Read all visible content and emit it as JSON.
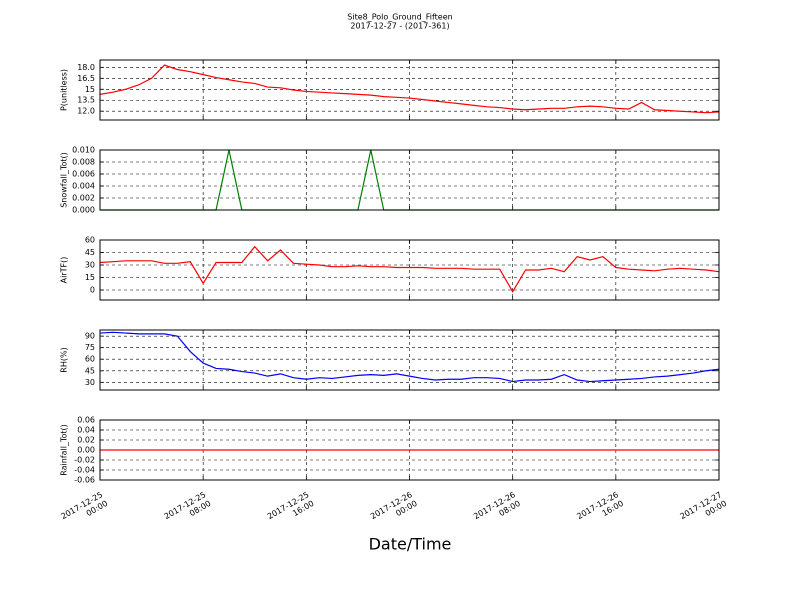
{
  "title": "Site8_Polo_Ground_Fifteen",
  "subtitle": "2017-12-27 - (2017-361)",
  "x_label": "Date/Time",
  "chart_data": [
    {
      "type": "line",
      "y_label": "P(unitless)",
      "ylim": [
        10.8,
        19.0
      ],
      "yticks": [
        {
          "value": 12,
          "label": "12.0"
        },
        13.5,
        15,
        16.5,
        {
          "value": 18,
          "label": "18.0"
        }
      ],
      "grid": true,
      "x": [
        "2017-12-25 00:00",
        "2017-12-25 01:00",
        "2017-12-25 02:00",
        "2017-12-25 03:00",
        "2017-12-25 04:00",
        "2017-12-25 05:00",
        "2017-12-25 06:00",
        "2017-12-25 07:00",
        "2017-12-25 08:00",
        "2017-12-25 09:00",
        "2017-12-25 10:00",
        "2017-12-25 11:00",
        "2017-12-25 12:00",
        "2017-12-25 13:00",
        "2017-12-25 14:00",
        "2017-12-25 15:00",
        "2017-12-25 16:00",
        "2017-12-25 17:00",
        "2017-12-25 18:00",
        "2017-12-25 19:00",
        "2017-12-25 20:00",
        "2017-12-25 21:00",
        "2017-12-25 22:00",
        "2017-12-25 23:00",
        "2017-12-26 00:00",
        "2017-12-26 01:00",
        "2017-12-26 02:00",
        "2017-12-26 03:00",
        "2017-12-26 04:00",
        "2017-12-26 05:00",
        "2017-12-26 06:00",
        "2017-12-26 07:00",
        "2017-12-26 08:00",
        "2017-12-26 09:00",
        "2017-12-26 10:00",
        "2017-12-26 11:00",
        "2017-12-26 12:00",
        "2017-12-26 13:00",
        "2017-12-26 14:00",
        "2017-12-26 15:00",
        "2017-12-26 16:00",
        "2017-12-26 17:00",
        "2017-12-26 18:00",
        "2017-12-26 19:00",
        "2017-12-26 20:00",
        "2017-12-26 21:00",
        "2017-12-26 22:00",
        "2017-12-26 23:00",
        "2017-12-27 00:00"
      ],
      "series": [
        {
          "color": "#ff0000",
          "values": [
            14.3,
            14.6,
            15.0,
            15.6,
            16.5,
            18.3,
            17.7,
            17.4,
            17.0,
            16.6,
            16.3,
            16.0,
            15.8,
            15.3,
            15.2,
            14.9,
            14.7,
            14.6,
            14.5,
            14.4,
            14.3,
            14.2,
            14.0,
            13.9,
            13.8,
            13.6,
            13.4,
            13.2,
            13.0,
            12.8,
            12.6,
            12.5,
            12.3,
            12.2,
            12.3,
            12.4,
            12.4,
            12.6,
            12.7,
            12.6,
            12.4,
            12.3,
            13.2,
            12.2,
            12.1,
            12.0,
            11.9,
            11.8,
            11.9
          ]
        }
      ]
    },
    {
      "type": "line",
      "y_label": "Snowfall_Tot()",
      "ylim": [
        0,
        0.01
      ],
      "yticks": [
        {
          "value": 0,
          "label": "0.000"
        },
        {
          "value": 0.002,
          "label": "0.002"
        },
        {
          "value": 0.004,
          "label": "0.004"
        },
        {
          "value": 0.006,
          "label": "0.006"
        },
        {
          "value": 0.008,
          "label": "0.008"
        },
        {
          "value": 0.01,
          "label": "0.010"
        }
      ],
      "grid": true,
      "x": [
        "2017-12-25 00:00",
        "2017-12-25 01:00",
        "2017-12-25 02:00",
        "2017-12-25 03:00",
        "2017-12-25 04:00",
        "2017-12-25 05:00",
        "2017-12-25 06:00",
        "2017-12-25 07:00",
        "2017-12-25 08:00",
        "2017-12-25 09:00",
        "2017-12-25 10:00",
        "2017-12-25 11:00",
        "2017-12-25 12:00",
        "2017-12-25 13:00",
        "2017-12-25 14:00",
        "2017-12-25 15:00",
        "2017-12-25 16:00",
        "2017-12-25 17:00",
        "2017-12-25 18:00",
        "2017-12-25 19:00",
        "2017-12-25 20:00",
        "2017-12-25 21:00",
        "2017-12-25 22:00",
        "2017-12-25 23:00",
        "2017-12-26 00:00",
        "2017-12-26 01:00",
        "2017-12-26 02:00",
        "2017-12-26 03:00",
        "2017-12-26 04:00",
        "2017-12-26 05:00",
        "2017-12-26 06:00",
        "2017-12-26 07:00",
        "2017-12-26 08:00",
        "2017-12-26 09:00",
        "2017-12-26 10:00",
        "2017-12-26 11:00",
        "2017-12-26 12:00",
        "2017-12-26 13:00",
        "2017-12-26 14:00",
        "2017-12-26 15:00",
        "2017-12-26 16:00",
        "2017-12-26 17:00",
        "2017-12-26 18:00",
        "2017-12-26 19:00",
        "2017-12-26 20:00",
        "2017-12-26 21:00",
        "2017-12-26 22:00",
        "2017-12-26 23:00",
        "2017-12-27 00:00"
      ],
      "series": [
        {
          "color": "#008000",
          "values": [
            0,
            0,
            0,
            0,
            0,
            0,
            0,
            0,
            0,
            0,
            0.01,
            0,
            0,
            0,
            0,
            0,
            0,
            0,
            0,
            0,
            0,
            0.01,
            0,
            0,
            0,
            0,
            0,
            0,
            0,
            0,
            0,
            0,
            0,
            0,
            0,
            0,
            0,
            0,
            0,
            0,
            0,
            0,
            0,
            0,
            0,
            0,
            0,
            0,
            0
          ]
        }
      ]
    },
    {
      "type": "line",
      "y_label": "AirTF()",
      "ylim": [
        -12,
        60
      ],
      "yticks": [
        0,
        15,
        30,
        45,
        60
      ],
      "grid": true,
      "x": [
        "2017-12-25 00:00",
        "2017-12-25 01:00",
        "2017-12-25 02:00",
        "2017-12-25 03:00",
        "2017-12-25 04:00",
        "2017-12-25 05:00",
        "2017-12-25 06:00",
        "2017-12-25 07:00",
        "2017-12-25 08:00",
        "2017-12-25 09:00",
        "2017-12-25 10:00",
        "2017-12-25 11:00",
        "2017-12-25 12:00",
        "2017-12-25 13:00",
        "2017-12-25 14:00",
        "2017-12-25 15:00",
        "2017-12-25 16:00",
        "2017-12-25 17:00",
        "2017-12-25 18:00",
        "2017-12-25 19:00",
        "2017-12-25 20:00",
        "2017-12-25 21:00",
        "2017-12-25 22:00",
        "2017-12-25 23:00",
        "2017-12-26 00:00",
        "2017-12-26 01:00",
        "2017-12-26 02:00",
        "2017-12-26 03:00",
        "2017-12-26 04:00",
        "2017-12-26 05:00",
        "2017-12-26 06:00",
        "2017-12-26 07:00",
        "2017-12-26 08:00",
        "2017-12-26 09:00",
        "2017-12-26 10:00",
        "2017-12-26 11:00",
        "2017-12-26 12:00",
        "2017-12-26 13:00",
        "2017-12-26 14:00",
        "2017-12-26 15:00",
        "2017-12-26 16:00",
        "2017-12-26 17:00",
        "2017-12-26 18:00",
        "2017-12-26 19:00",
        "2017-12-26 20:00",
        "2017-12-26 21:00",
        "2017-12-26 22:00",
        "2017-12-26 23:00",
        "2017-12-27 00:00"
      ],
      "series": [
        {
          "color": "#ff0000",
          "values": [
            33,
            34,
            35,
            35,
            35,
            32,
            32,
            34,
            8,
            33,
            33,
            33,
            52,
            35,
            48,
            32,
            31,
            30,
            28,
            28,
            29,
            28,
            28,
            27,
            27,
            27,
            26,
            26,
            26,
            25,
            25,
            25,
            -2,
            24,
            24,
            26,
            22,
            40,
            36,
            40,
            27,
            25,
            24,
            23,
            25,
            26,
            25,
            24,
            22
          ]
        }
      ]
    },
    {
      "type": "line",
      "y_label": "RH(%)",
      "ylim": [
        20,
        98
      ],
      "yticks": [
        30,
        45,
        60,
        75,
        90
      ],
      "grid": true,
      "x": [
        "2017-12-25 00:00",
        "2017-12-25 01:00",
        "2017-12-25 02:00",
        "2017-12-25 03:00",
        "2017-12-25 04:00",
        "2017-12-25 05:00",
        "2017-12-25 06:00",
        "2017-12-25 07:00",
        "2017-12-25 08:00",
        "2017-12-25 09:00",
        "2017-12-25 10:00",
        "2017-12-25 11:00",
        "2017-12-25 12:00",
        "2017-12-25 13:00",
        "2017-12-25 14:00",
        "2017-12-25 15:00",
        "2017-12-25 16:00",
        "2017-12-25 17:00",
        "2017-12-25 18:00",
        "2017-12-25 19:00",
        "2017-12-25 20:00",
        "2017-12-25 21:00",
        "2017-12-25 22:00",
        "2017-12-25 23:00",
        "2017-12-26 00:00",
        "2017-12-26 01:00",
        "2017-12-26 02:00",
        "2017-12-26 03:00",
        "2017-12-26 04:00",
        "2017-12-26 05:00",
        "2017-12-26 06:00",
        "2017-12-26 07:00",
        "2017-12-26 08:00",
        "2017-12-26 09:00",
        "2017-12-26 10:00",
        "2017-12-26 11:00",
        "2017-12-26 12:00",
        "2017-12-26 13:00",
        "2017-12-26 14:00",
        "2017-12-26 15:00",
        "2017-12-26 16:00",
        "2017-12-26 17:00",
        "2017-12-26 18:00",
        "2017-12-26 19:00",
        "2017-12-26 20:00",
        "2017-12-26 21:00",
        "2017-12-26 22:00",
        "2017-12-26 23:00",
        "2017-12-27 00:00"
      ],
      "series": [
        {
          "color": "#0000ff",
          "values": [
            94,
            95,
            94,
            93,
            93,
            93,
            90,
            70,
            55,
            48,
            47,
            44,
            42,
            38,
            41,
            36,
            34,
            36,
            35,
            37,
            39,
            40,
            39,
            41,
            38,
            35,
            33,
            34,
            34,
            36,
            36,
            35,
            31,
            33,
            33,
            34,
            40,
            33,
            31,
            32,
            33,
            34,
            35,
            37,
            38,
            40,
            42,
            45,
            47
          ]
        }
      ]
    },
    {
      "type": "line",
      "y_label": "Rainfall_Tot()",
      "ylim": [
        -0.06,
        0.06
      ],
      "yticks": [
        -0.06,
        -0.04,
        -0.02,
        {
          "value": 0,
          "label": "0.00"
        },
        0.02,
        0.04,
        0.06
      ],
      "grid": true,
      "x": [
        "2017-12-25 00:00",
        "2017-12-25 01:00",
        "2017-12-25 02:00",
        "2017-12-25 03:00",
        "2017-12-25 04:00",
        "2017-12-25 05:00",
        "2017-12-25 06:00",
        "2017-12-25 07:00",
        "2017-12-25 08:00",
        "2017-12-25 09:00",
        "2017-12-25 10:00",
        "2017-12-25 11:00",
        "2017-12-25 12:00",
        "2017-12-25 13:00",
        "2017-12-25 14:00",
        "2017-12-25 15:00",
        "2017-12-25 16:00",
        "2017-12-25 17:00",
        "2017-12-25 18:00",
        "2017-12-25 19:00",
        "2017-12-25 20:00",
        "2017-12-25 21:00",
        "2017-12-25 22:00",
        "2017-12-25 23:00",
        "2017-12-26 00:00",
        "2017-12-26 01:00",
        "2017-12-26 02:00",
        "2017-12-26 03:00",
        "2017-12-26 04:00",
        "2017-12-26 05:00",
        "2017-12-26 06:00",
        "2017-12-26 07:00",
        "2017-12-26 08:00",
        "2017-12-26 09:00",
        "2017-12-26 10:00",
        "2017-12-26 11:00",
        "2017-12-26 12:00",
        "2017-12-26 13:00",
        "2017-12-26 14:00",
        "2017-12-26 15:00",
        "2017-12-26 16:00",
        "2017-12-26 17:00",
        "2017-12-26 18:00",
        "2017-12-26 19:00",
        "2017-12-26 20:00",
        "2017-12-26 21:00",
        "2017-12-26 22:00",
        "2017-12-26 23:00",
        "2017-12-27 00:00"
      ],
      "series": [
        {
          "color": "#ff0000",
          "values": [
            0,
            0,
            0,
            0,
            0,
            0,
            0,
            0,
            0,
            0,
            0,
            0,
            0,
            0,
            0,
            0,
            0,
            0,
            0,
            0,
            0,
            0,
            0,
            0,
            0,
            0,
            0,
            0,
            0,
            0,
            0,
            0,
            0,
            0,
            0,
            0,
            0,
            0,
            0,
            0,
            0,
            0,
            0,
            0,
            0,
            0,
            0,
            0,
            0
          ]
        }
      ],
      "xlim": [
        "2017-12-25 00:00",
        "2017-12-27 00:00"
      ],
      "xticks": [
        {
          "value": "2017-12-25 00:00",
          "label": [
            "2017-12-25",
            "00:00"
          ]
        },
        {
          "value": "2017-12-25 08:00",
          "label": [
            "2017-12-25",
            "08:00"
          ]
        },
        {
          "value": "2017-12-25 16:00",
          "label": [
            "2017-12-25",
            "16:00"
          ]
        },
        {
          "value": "2017-12-26 00:00",
          "label": [
            "2017-12-26",
            "00:00"
          ]
        },
        {
          "value": "2017-12-26 08:00",
          "label": [
            "2017-12-26",
            "08:00"
          ]
        },
        {
          "value": "2017-12-26 16:00",
          "label": [
            "2017-12-26",
            "16:00"
          ]
        },
        {
          "value": "2017-12-27 00:00",
          "label": [
            "2017-12-27",
            "00:00"
          ]
        }
      ]
    }
  ]
}
